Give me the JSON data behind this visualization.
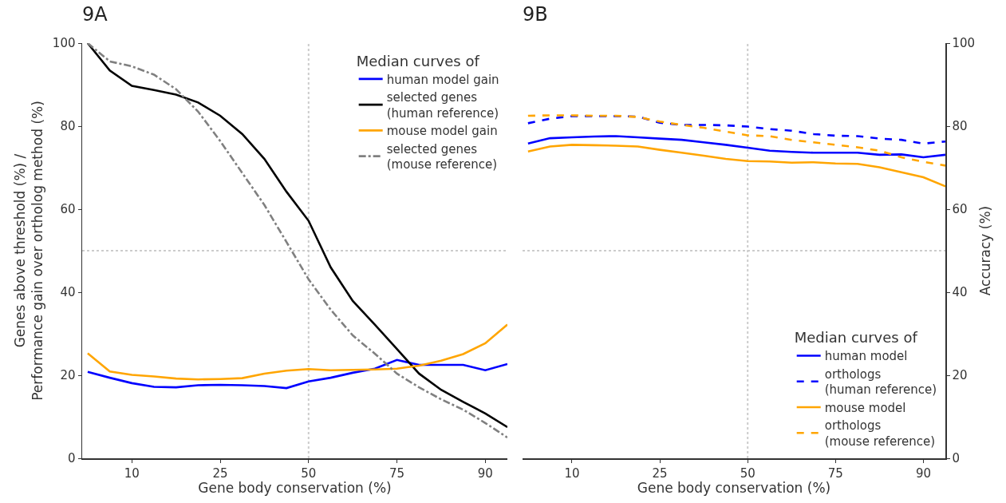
{
  "chart_data": [
    {
      "type": "line",
      "title": "9A",
      "xlabel": "Gene body conservation (%)",
      "ylabel": "Genes above threshold (%) /\nPerformance gain over ortholog method (%)",
      "legend_title": "Median curves of",
      "legend": "top right",
      "grid": false,
      "categories": [
        null,
        null,
        "10",
        null,
        null,
        null,
        "25",
        null,
        null,
        null,
        "50",
        null,
        null,
        null,
        "75",
        null,
        null,
        null,
        "90",
        null
      ],
      "ylim": [
        0,
        100
      ],
      "yticks": [
        0,
        20,
        40,
        60,
        80,
        100
      ],
      "ref_lines": [
        {
          "axis": "x",
          "value": "50",
          "color": "#cccccc",
          "line_style": "dotted"
        },
        {
          "axis": "y",
          "value": 50,
          "color": "#cccccc",
          "line_style": "dotted"
        }
      ],
      "series": [
        {
          "name": "human model gain",
          "color": "#0000ff",
          "line_style": "solid",
          "values": [
            20.8,
            19.4,
            18.1,
            17.2,
            17.1,
            17.6,
            17.7,
            17.6,
            17.4,
            16.9,
            18.5,
            19.4,
            20.6,
            21.6,
            23.7,
            22.5,
            22.5,
            22.5,
            21.2,
            22.7
          ]
        },
        {
          "name": "selected genes\n(human reference)",
          "color": "#000000",
          "line_style": "solid",
          "values": [
            100,
            93.4,
            89.7,
            88.7,
            87.6,
            85.7,
            82.5,
            78.1,
            72.1,
            64.2,
            57.2,
            46.0,
            37.9,
            32.2,
            26.3,
            20.4,
            16.5,
            13.6,
            10.8,
            7.5
          ]
        },
        {
          "name": "mouse model gain",
          "color": "#ffa500",
          "line_style": "solid",
          "values": [
            25.3,
            20.9,
            20.1,
            19.7,
            19.2,
            19.0,
            19.1,
            19.3,
            20.4,
            21.1,
            21.5,
            21.2,
            21.3,
            21.4,
            21.6,
            22.3,
            23.5,
            25.1,
            27.7,
            32.2
          ]
        },
        {
          "name": "selected genes\n(mouse reference)",
          "color": "#808080",
          "line_style": "dashdot",
          "values": [
            100,
            95.6,
            94.4,
            92.4,
            88.9,
            83.5,
            76.4,
            68.7,
            61.0,
            52.1,
            43.1,
            35.8,
            29.6,
            25.2,
            20.4,
            17.1,
            14.2,
            11.7,
            8.5,
            5.0
          ]
        }
      ]
    },
    {
      "type": "line",
      "title": "9B",
      "xlabel": "Gene body conservation (%)",
      "y2label": "Accuracy (%)",
      "legend_title": "Median curves of",
      "legend": "bottom right",
      "grid": false,
      "categories": [
        null,
        null,
        "10",
        null,
        null,
        null,
        "25",
        null,
        null,
        null,
        "50",
        null,
        null,
        null,
        "75",
        null,
        null,
        null,
        "90",
        null
      ],
      "y2lim": [
        0,
        100
      ],
      "y2ticks": [
        0,
        20,
        40,
        60,
        80,
        100
      ],
      "ref_lines": [
        {
          "axis": "x",
          "value": "50",
          "color": "#cccccc",
          "line_style": "dotted"
        },
        {
          "axis": "y2",
          "value": 50,
          "color": "#cccccc",
          "line_style": "dotted"
        }
      ],
      "series": [
        {
          "name": "human model",
          "color": "#0000ff",
          "line_style": "solid",
          "axis": "y2",
          "values": [
            75.8,
            77.1,
            77.3,
            77.5,
            77.6,
            77.3,
            77.0,
            76.7,
            76.1,
            75.5,
            74.8,
            74.1,
            73.8,
            73.6,
            73.6,
            73.6,
            73.1,
            73.2,
            72.5,
            73.1
          ]
        },
        {
          "name": "orthologs\n(human reference)",
          "color": "#0000ff",
          "line_style": "dashed",
          "axis": "y2",
          "values": [
            80.7,
            81.8,
            82.4,
            82.4,
            82.4,
            82.3,
            80.8,
            80.3,
            80.3,
            80.2,
            79.9,
            79.3,
            78.9,
            78.1,
            77.7,
            77.6,
            77.0,
            76.7,
            75.8,
            76.3
          ]
        },
        {
          "name": "mouse model",
          "color": "#ffa500",
          "line_style": "solid",
          "axis": "y2",
          "values": [
            73.9,
            75.1,
            75.5,
            75.4,
            75.3,
            75.1,
            74.3,
            73.6,
            72.9,
            72.1,
            71.6,
            71.5,
            71.2,
            71.3,
            71.0,
            70.9,
            70.1,
            68.9,
            67.7,
            65.5
          ]
        },
        {
          "name": "orthologs\n(mouse reference)",
          "color": "#ffa500",
          "line_style": "dashed",
          "axis": "y2",
          "values": [
            82.5,
            82.6,
            82.6,
            82.5,
            82.5,
            82.2,
            81.1,
            80.3,
            79.6,
            78.7,
            77.8,
            77.6,
            76.7,
            76.1,
            75.5,
            74.9,
            74.1,
            72.5,
            71.4,
            70.5
          ]
        }
      ]
    }
  ]
}
